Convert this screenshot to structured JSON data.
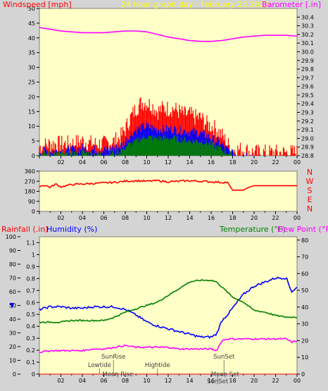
{
  "header": {
    "title": "24 hour graph day - February 22 2020",
    "windspeed_label": "Windspeed [mph]",
    "barometer_label": "Barometer [.in]",
    "rainfall_label": "Rainfall (.in)",
    "humidity_label": "Humidity (%)",
    "temperature_label": "Temperature (°F)",
    "dewpoint_label": "Dew Point (°F)"
  },
  "colors": {
    "plot_bg": "#ffffc8",
    "frame_bg": "#d4d4d4",
    "gust": "#ff0000",
    "wind_avg": "#0000ff",
    "wind_low": "#008000",
    "barometer": "#ff00ff",
    "direction": "#ff0000",
    "humidity": "#0000ff",
    "temperature": "#008000",
    "dewpoint": "#ff00ff",
    "rain": "#ff0000"
  },
  "chart_data": [
    {
      "type": "bar",
      "name": "wind-and-barometer",
      "x_ticks": [
        "02",
        "04",
        "06",
        "08",
        "10",
        "12",
        "14",
        "16",
        "18",
        "20",
        "22",
        "00"
      ],
      "y_left": {
        "ylim": [
          0,
          50
        ],
        "ticks": [
          0,
          5,
          10,
          15,
          20,
          25,
          30,
          35,
          40,
          45,
          50
        ]
      },
      "y_right": {
        "ylim": [
          28.8,
          30.5
        ],
        "ticks": [
          "28.8",
          "28.9",
          "29.0",
          "29.1",
          "29.2",
          "29.3",
          "29.4",
          "29.5",
          "29.6",
          "29.7",
          "29.8",
          "29.9",
          "30.0",
          "30.1",
          "30.2",
          "30.3",
          "30.4"
        ]
      },
      "x_hours": [
        0,
        1,
        2,
        3,
        4,
        5,
        6,
        7,
        7.5,
        8,
        8.5,
        9,
        9.5,
        10,
        10.5,
        11,
        11.5,
        12,
        12.5,
        13,
        13.5,
        14,
        14.5,
        15,
        15.5,
        16,
        16.5,
        17,
        17.5,
        18,
        19,
        20,
        21,
        22,
        23,
        24
      ],
      "gust": [
        3,
        4,
        4,
        4,
        5,
        4,
        4,
        5,
        6,
        9,
        13,
        16,
        18,
        18,
        17,
        15,
        16,
        16,
        16,
        15,
        14,
        14,
        13,
        13,
        11,
        10,
        9,
        7,
        4,
        2,
        2,
        1,
        1,
        1,
        1,
        1
      ],
      "wind_avg": [
        1.5,
        1.5,
        1.5,
        2,
        2.5,
        2,
        2,
        2.5,
        3,
        5,
        7,
        9,
        9.5,
        10,
        9.5,
        9,
        9,
        9,
        9,
        8.5,
        8.5,
        8,
        8,
        7.5,
        7,
        6,
        5,
        4,
        2,
        0.5,
        0.5,
        0,
        0,
        0,
        0,
        0
      ],
      "wind_low": [
        0.5,
        0.5,
        0.5,
        0.5,
        1,
        0.5,
        0.5,
        1,
        1.5,
        3,
        4,
        5,
        6,
        6.5,
        6,
        6,
        6,
        6,
        6,
        5.5,
        5.5,
        5,
        5,
        5,
        4.5,
        4,
        3,
        2,
        1,
        0,
        0,
        0,
        0,
        0,
        0,
        0
      ],
      "barometer_x": [
        0,
        1,
        2,
        3,
        4,
        5,
        6,
        7,
        8,
        9,
        10,
        11,
        12,
        13,
        14,
        15,
        16,
        17,
        18,
        19,
        20,
        21,
        22,
        23,
        24
      ],
      "barometer": [
        30.28,
        30.26,
        30.24,
        30.23,
        30.22,
        30.22,
        30.22,
        30.23,
        30.24,
        30.24,
        30.23,
        30.2,
        30.17,
        30.15,
        30.13,
        30.12,
        30.12,
        30.13,
        30.15,
        30.17,
        30.18,
        30.19,
        30.19,
        30.19,
        30.18
      ]
    },
    {
      "type": "line",
      "name": "wind-direction",
      "x_ticks": [
        "02",
        "04",
        "06",
        "08",
        "10",
        "12",
        "14",
        "16",
        "18",
        "20",
        "22",
        "00"
      ],
      "y_left": {
        "ylim": [
          0,
          360
        ],
        "ticks": [
          0,
          90,
          180,
          270,
          360
        ]
      },
      "y_right_labels": [
        "N",
        "W",
        "S",
        "E",
        "N"
      ],
      "x": [
        0,
        0.5,
        1,
        1.5,
        2,
        3,
        4,
        5,
        6,
        7,
        8,
        9,
        10,
        11,
        12,
        13,
        14,
        15,
        16,
        17,
        17.5,
        18,
        18.5,
        19,
        19.5,
        20,
        21,
        22,
        23,
        24
      ],
      "values": [
        225,
        235,
        215,
        245,
        220,
        240,
        245,
        250,
        255,
        260,
        270,
        275,
        270,
        275,
        265,
        270,
        275,
        270,
        265,
        260,
        260,
        190,
        190,
        190,
        215,
        230,
        230,
        230,
        230,
        230
      ]
    },
    {
      "type": "line",
      "name": "rain-humidity-temperature",
      "x_ticks": [
        "02",
        "04",
        "06",
        "08",
        "10",
        "12",
        "14",
        "16",
        "18",
        "20",
        "22",
        "00"
      ],
      "y_left_outer": {
        "label": "Humidity (%)",
        "ylim": [
          0,
          100
        ],
        "ticks": [
          0,
          10,
          20,
          30,
          40,
          50,
          60,
          70,
          80,
          90,
          100
        ]
      },
      "y_left_inner": {
        "label": "Rainfall (.in)",
        "ylim": [
          0,
          1.15
        ],
        "ticks": [
          "0",
          "0.1",
          "0.2",
          "0.3",
          "0.4",
          "0.5",
          "0.6",
          "0.7",
          "0.8",
          "0.9",
          "1",
          "1.1"
        ]
      },
      "y_right": {
        "label": "Temperature (°F)",
        "ylim": [
          0,
          82
        ],
        "ticks": [
          0,
          10,
          20,
          30,
          40,
          50,
          60,
          70,
          80
        ]
      },
      "x": [
        0,
        1,
        2,
        3,
        4,
        5,
        6,
        7,
        8,
        9,
        10,
        11,
        12,
        13,
        14,
        15,
        16,
        16.5,
        17,
        17.5,
        18,
        19,
        20,
        21,
        22,
        23,
        23.5,
        24
      ],
      "humidity": [
        47,
        49,
        49,
        48,
        48,
        49,
        49,
        49,
        47,
        43,
        38,
        35,
        33,
        31,
        29,
        27,
        27,
        29,
        39,
        43,
        48,
        58,
        64,
        67,
        70,
        70,
        60,
        63
      ],
      "temperature": [
        31,
        31,
        31,
        32,
        32,
        32,
        32,
        34,
        37,
        39,
        41,
        43,
        47,
        51,
        55,
        56,
        56,
        55,
        52,
        49,
        46,
        43,
        38,
        37,
        35,
        34,
        34,
        34
      ],
      "dewpoint": [
        13,
        14,
        14,
        14,
        14,
        15,
        15,
        16,
        17,
        16,
        16,
        16,
        16,
        15,
        15,
        15,
        15,
        14,
        20,
        21,
        21,
        21,
        21,
        21,
        21,
        21,
        19,
        20
      ],
      "rain": 0,
      "events": [
        {
          "label": "SunRise",
          "x": 6.9,
          "pos": "upper"
        },
        {
          "label": "Lowtide",
          "x": 5.6,
          "pos": "middle"
        },
        {
          "label": "Moon Rise",
          "x": 7.3,
          "pos": "lower"
        },
        {
          "label": "Hightide",
          "x": 11.0,
          "pos": "middle"
        },
        {
          "label": "SunSet",
          "x": 17.2,
          "pos": "upper"
        },
        {
          "label": "Moon Set",
          "x": 17.3,
          "pos": "lower"
        },
        {
          "label": "SunSet",
          "x": 16.6,
          "pos": "bottom"
        }
      ]
    }
  ]
}
